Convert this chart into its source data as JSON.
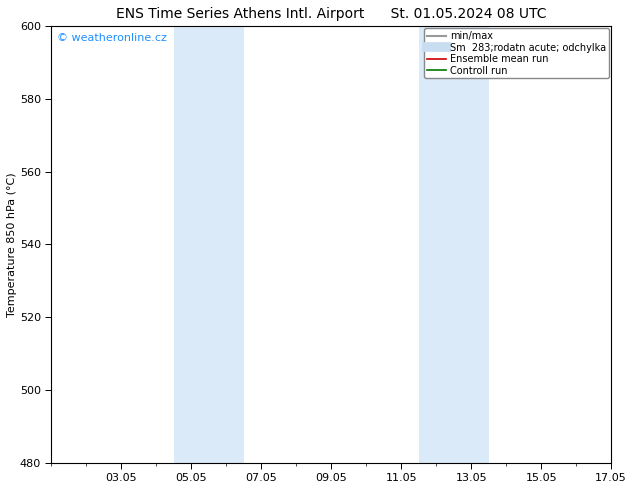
{
  "title_left": "ENS Time Series Athens Intl. Airport",
  "title_right": "St. 01.05.2024 08 UTC",
  "ylabel": "Temperature 850 hPa (°C)",
  "ylim": [
    480,
    600
  ],
  "yticks": [
    480,
    500,
    520,
    540,
    560,
    580,
    600
  ],
  "xlim_start": 0,
  "xlim_end": 16,
  "xtick_positions": [
    2,
    4,
    6,
    8,
    10,
    12,
    14,
    16
  ],
  "xtick_labels": [
    "03.05",
    "05.05",
    "07.05",
    "09.05",
    "11.05",
    "13.05",
    "15.05",
    "17.05"
  ],
  "shaded_bands": [
    {
      "x_start": 3.5,
      "x_end": 5.5
    },
    {
      "x_start": 10.5,
      "x_end": 12.5
    }
  ],
  "shade_color": "#daeaf8",
  "background_color": "#ffffff",
  "watermark_text": "© weatheronline.cz",
  "watermark_color": "#1e90ff",
  "legend_entries": [
    {
      "label": "min/max",
      "color": "#999999",
      "lw": 1.5
    },
    {
      "label": "Sm  283;rodatn acute; odchylka",
      "color": "#c8ddf0",
      "lw": 7
    },
    {
      "label": "Ensemble mean run",
      "color": "#cc0000",
      "lw": 1.2
    },
    {
      "label": "Controll run",
      "color": "#007700",
      "lw": 1.2
    }
  ],
  "title_fontsize": 10,
  "axis_label_fontsize": 8,
  "tick_fontsize": 8,
  "legend_fontsize": 7,
  "watermark_fontsize": 8,
  "watermark_color_c": "#0066cc"
}
